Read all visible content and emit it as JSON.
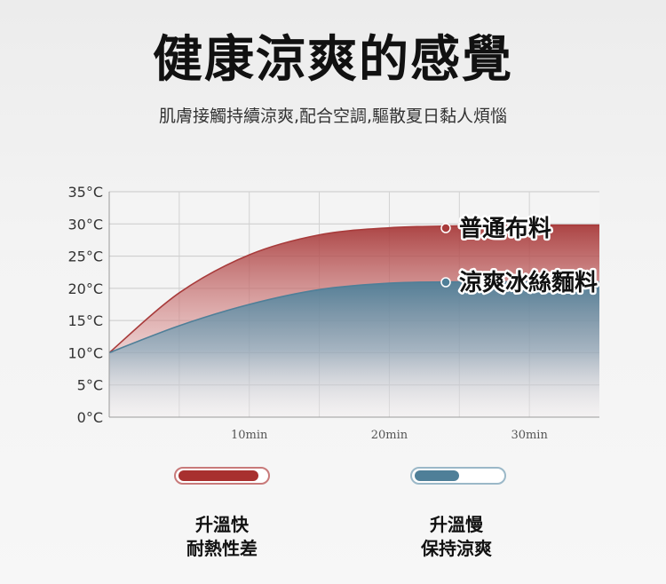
{
  "header": {
    "title": "健康涼爽的感覺",
    "subtitle": "肌膚接觸持續涼爽,配合空調,驅散夏日黏人煩惱"
  },
  "chart_data": {
    "type": "area",
    "y_ticks": [
      "0°C",
      "5°C",
      "10°C",
      "15°C",
      "20°C",
      "25°C",
      "30°C",
      "35°C"
    ],
    "x_ticks": [
      {
        "label": "10min",
        "value": 10
      },
      {
        "label": "20min",
        "value": 20
      },
      {
        "label": "30min",
        "value": 30
      }
    ],
    "xlim": [
      0,
      35
    ],
    "ylim": [
      0,
      35
    ],
    "series": [
      {
        "name": "普通布料",
        "color": "#a83b3b",
        "x": [
          0,
          5,
          10,
          15,
          20,
          25,
          30,
          35
        ],
        "values": [
          10,
          19.3,
          25.2,
          28.3,
          29.4,
          29.7,
          29.8,
          29.8
        ]
      },
      {
        "name": "涼爽冰絲麵料",
        "color": "#4f7f98",
        "x": [
          0,
          5,
          10,
          15,
          20,
          25,
          30,
          35
        ],
        "values": [
          10,
          14.2,
          17.5,
          19.8,
          20.8,
          21.0,
          21.0,
          21.0
        ]
      }
    ],
    "grid": true
  },
  "legend_bottom": [
    {
      "line1": "升溫快",
      "line2": "耐熱性差",
      "level": 0.9,
      "color": "#a8302f"
    },
    {
      "line1": "升溫慢",
      "line2": "保持涼爽",
      "level": 0.5,
      "color": "#4f7f98"
    }
  ]
}
